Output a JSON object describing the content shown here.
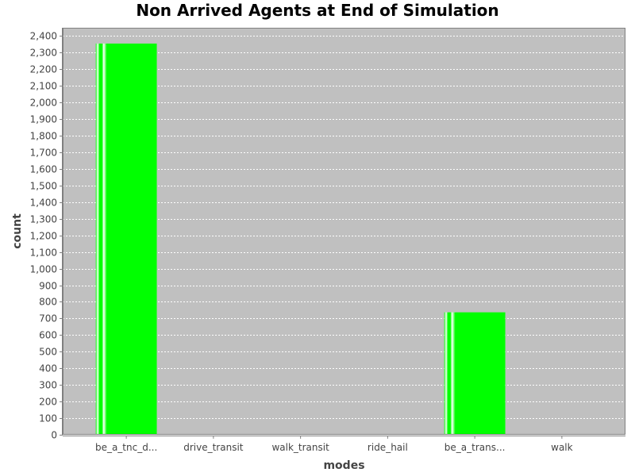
{
  "chart_data": {
    "type": "bar",
    "title": "Non Arrived Agents at End of Simulation",
    "xlabel": "modes",
    "ylabel": "count",
    "categories": [
      "be_a_tnc_d...",
      "drive_transit",
      "walk_transit",
      "ride_hail",
      "be_a_trans...",
      "walk"
    ],
    "values": [
      2355,
      0,
      0,
      0,
      737,
      0
    ],
    "ylim": [
      0,
      2450
    ],
    "yticks": [
      0,
      100,
      200,
      300,
      400,
      500,
      600,
      700,
      800,
      900,
      1000,
      1100,
      1200,
      1300,
      1400,
      1500,
      1600,
      1700,
      1800,
      1900,
      2000,
      2100,
      2200,
      2300,
      2400
    ],
    "ytick_labels": [
      "0",
      "100",
      "200",
      "300",
      "400",
      "500",
      "600",
      "700",
      "800",
      "900",
      "1,000",
      "1,100",
      "1,200",
      "1,300",
      "1,400",
      "1,500",
      "1,600",
      "1,700",
      "1,800",
      "1,900",
      "2,000",
      "2,100",
      "2,200",
      "2,300",
      "2,400"
    ],
    "grid": true,
    "colors": {
      "bar": "#00ff00",
      "plot_background": "#c0c0c0",
      "gridline": "#ffffff"
    }
  }
}
